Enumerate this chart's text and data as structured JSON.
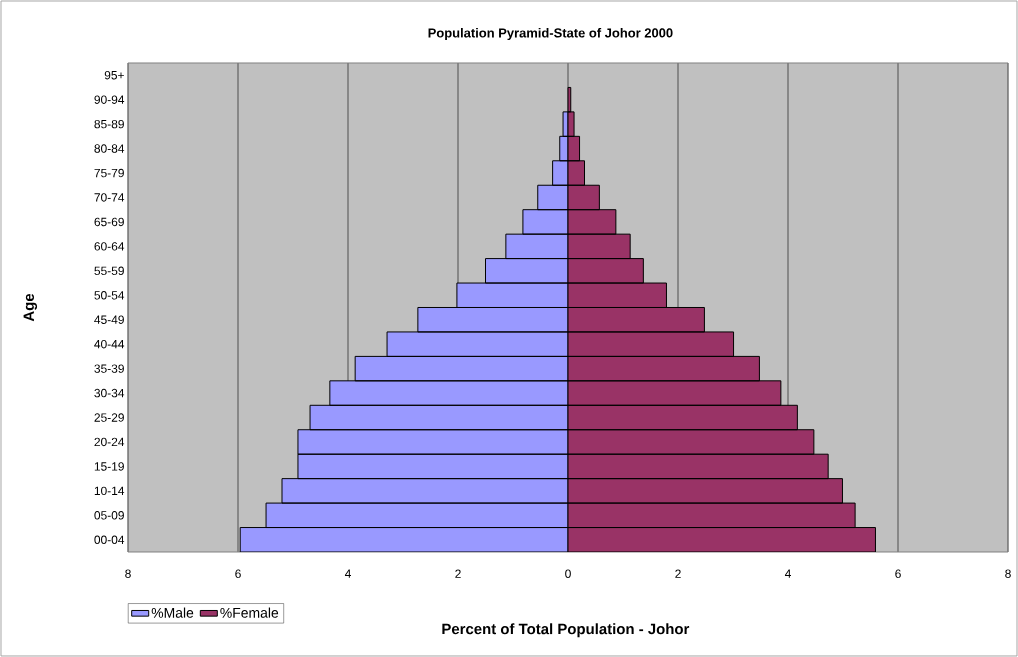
{
  "chart_data": {
    "type": "bar",
    "orientation": "horizontal",
    "title": "Population Pyramid-State of Johor 2000",
    "xlabel": "Percent of Total Population - Johor",
    "ylabel": "Age",
    "categories": [
      "95+",
      "90-94",
      "85-89",
      "80-84",
      "75-79",
      "70-74",
      "65-69",
      "60-64",
      "55-59",
      "50-54",
      "45-49",
      "40-44",
      "35-39",
      "30-34",
      "25-29",
      "20-24",
      "15-19",
      "10-14",
      "05-09",
      "00-04"
    ],
    "series": [
      {
        "name": "%Male",
        "color": "#9999ff",
        "values": [
          null,
          null,
          -0.09,
          -0.15,
          -0.28,
          -0.55,
          -0.82,
          -1.13,
          -1.5,
          -2.02,
          -2.73,
          -3.29,
          -3.87,
          -4.33,
          -4.69,
          -4.91,
          -4.91,
          -5.2,
          -5.49,
          -5.96
        ]
      },
      {
        "name": "%Female",
        "color": "#993366",
        "values": [
          null,
          0.05,
          0.11,
          0.21,
          0.3,
          0.57,
          0.87,
          1.13,
          1.37,
          1.79,
          2.48,
          3.01,
          3.48,
          3.87,
          4.17,
          4.47,
          4.73,
          4.99,
          5.22,
          5.59
        ]
      }
    ],
    "xlim": [
      -8,
      8
    ],
    "xticks": [
      {
        "value": -8,
        "label": "8"
      },
      {
        "value": -6,
        "label": "6"
      },
      {
        "value": -4,
        "label": "4"
      },
      {
        "value": -2,
        "label": "2"
      },
      0,
      2,
      4,
      6,
      8
    ],
    "grid": "x",
    "legend": "bottom left",
    "stacked": true
  }
}
